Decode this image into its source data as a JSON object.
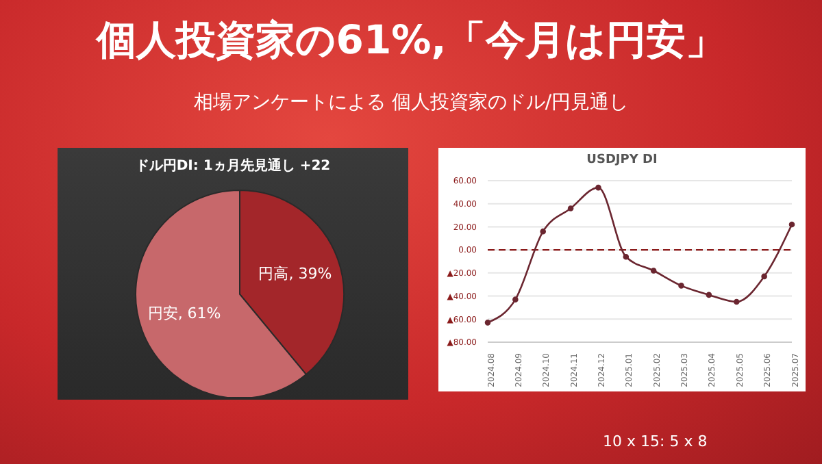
{
  "chart_data": [
    {
      "type": "other",
      "title": "個人投資家の61%,「今月は円安」",
      "subtitle": "相場アンケートによる 個人投資家のドル/円見通し",
      "annotations": [
        "10 x 15: 5 x 8"
      ]
    },
    {
      "type": "pie",
      "title": "ドル円DI: 1ヵ月先見通し +22",
      "categories": [
        "円高",
        "円安"
      ],
      "values": [
        39,
        61
      ],
      "colors": [
        "#a3262a",
        "#c7686b"
      ],
      "value_labels": [
        "39%",
        "61%"
      ]
    },
    {
      "type": "line",
      "title": "USDJPY DI",
      "categories": [
        "2024.08",
        "2024.09",
        "2024.10",
        "2024.11",
        "2024.12",
        "2025.01",
        "2025.02",
        "2025.03",
        "2025.04",
        "2025.05",
        "2025.06",
        "2025.07"
      ],
      "values": [
        -63,
        -43,
        16,
        36,
        54,
        -6,
        -18,
        -31,
        -39,
        -45,
        -23,
        22
      ],
      "color": "#6b2630",
      "marker": "circle",
      "grid": "y",
      "ylim": [
        -80,
        60
      ],
      "yticks": [
        {
          "value": -80,
          "label": "▲80.00"
        },
        {
          "value": -60,
          "label": "▲60.00"
        },
        {
          "value": -40,
          "label": "▲40.00"
        },
        {
          "value": -20,
          "label": "▲20.00"
        },
        {
          "value": 0,
          "label": "0.00"
        },
        {
          "value": 20,
          "label": "20.00"
        },
        {
          "value": 40,
          "label": "40.00"
        },
        {
          "value": 60,
          "label": "60.00"
        }
      ],
      "ref_lines": [
        {
          "axis": "y",
          "value": 0,
          "color": "#8b1a1a",
          "line_style": "dashed"
        }
      ]
    }
  ]
}
